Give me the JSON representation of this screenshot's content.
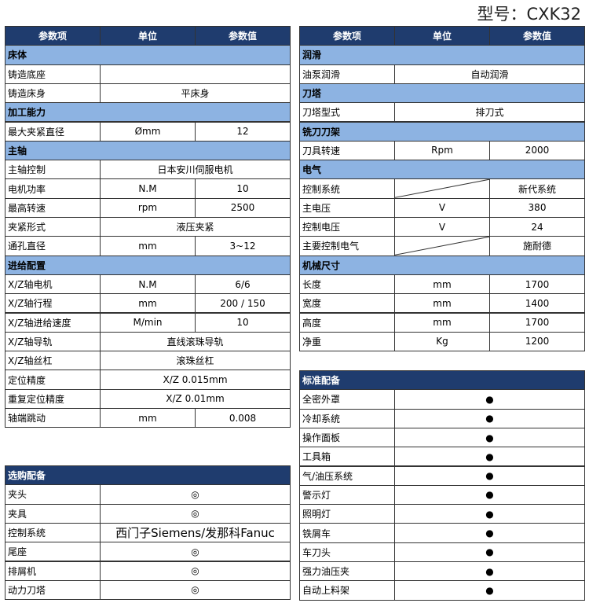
{
  "title": "型号：CXK32",
  "left_table": {
    "header": [
      "参数项",
      "单位",
      "参数值"
    ],
    "sections": [
      {
        "title": "床体",
        "rows": [
          [
            "铸造底座"
          ],
          [
            "铸造床身",
            "平床身"
          ]
        ]
      },
      {
        "title": "加工能力",
        "rows": [
          [
            "最大夹紧直径",
            "Ømm",
            "12"
          ]
        ]
      },
      {
        "title": "主轴",
        "rows": [
          [
            "主轴控制",
            "日本安川伺服电机"
          ],
          [
            "电机功率",
            "N.M",
            "10"
          ],
          [
            "最高转速",
            "rpm",
            "2500"
          ],
          [
            "夹紧形式",
            "液压夹紧"
          ],
          [
            "通孔直径",
            "mm",
            "3~12"
          ]
        ]
      },
      {
        "title": "进给配置",
        "rows": [
          [
            "X/Z轴电机",
            "N.M",
            "6/6"
          ],
          [
            "X/Z轴行程",
            "mm",
            "200 / 150"
          ],
          [
            "X/Z轴进给速度",
            "M/min",
            "10"
          ],
          [
            "X/Z轴导轨",
            "直线滚珠导轨"
          ],
          [
            "X/Z轴丝杠",
            "滚珠丝杠"
          ],
          [
            "定位精度",
            "X/Z 0.015mm"
          ],
          [
            "重复定位精度",
            "X/Z 0.01mm"
          ],
          [
            "轴端跳动",
            "mm",
            "0.008"
          ]
        ]
      }
    ]
  },
  "right_table": {
    "header": [
      "参数项",
      "单位",
      "参数值"
    ],
    "sections": [
      {
        "title": "润滑",
        "rows": [
          [
            "油泵润滑",
            "自动润滑"
          ]
        ]
      },
      {
        "title": "刀塔",
        "rows": [
          [
            "刀塔型式",
            "排刀式"
          ]
        ]
      },
      {
        "title": "铣刀刀架",
        "rows": [
          [
            "刀具转速",
            "Rpm",
            "2000"
          ]
        ]
      },
      {
        "title": "电气",
        "rows": [
          [
            "控制系统",
            null,
            "新代系统"
          ],
          [
            "主电压",
            "V",
            "380"
          ],
          [
            "控制电压",
            "V",
            "24"
          ],
          [
            "主要控制电气",
            null,
            "施耐德"
          ]
        ]
      },
      {
        "title": "机械尺寸",
        "rows": [
          [
            "长度",
            "mm",
            "1700"
          ],
          [
            "宽度",
            "mm",
            "1400"
          ],
          [
            "高度",
            "mm",
            "1700"
          ],
          [
            "净重",
            "Kg",
            "1200"
          ]
        ]
      }
    ]
  },
  "standard": {
    "title": "标准配备",
    "rows": [
      [
        "全密外罩",
        "●"
      ],
      [
        "冷却系统",
        "●"
      ],
      [
        "操作面板",
        "●"
      ],
      [
        "工具箱",
        "●"
      ],
      [
        "气/油压系统",
        "●"
      ],
      [
        "警示灯",
        "●"
      ],
      [
        "照明灯",
        "●"
      ],
      [
        "铁屑车",
        "●"
      ],
      [
        "车刀头",
        "●"
      ],
      [
        "强力油压夹",
        "●"
      ],
      [
        "自动上料架",
        "●"
      ]
    ]
  },
  "optional": {
    "title": "选购配备",
    "rows": [
      [
        "夹头",
        "◎"
      ],
      [
        "夹具",
        "◎"
      ],
      [
        "控制系统",
        "西门子Siemens/发那科Fanuc"
      ],
      [
        "尾座",
        "◎"
      ],
      [
        "排屑机",
        "◎"
      ],
      [
        "动力刀塔",
        "◎"
      ]
    ]
  }
}
